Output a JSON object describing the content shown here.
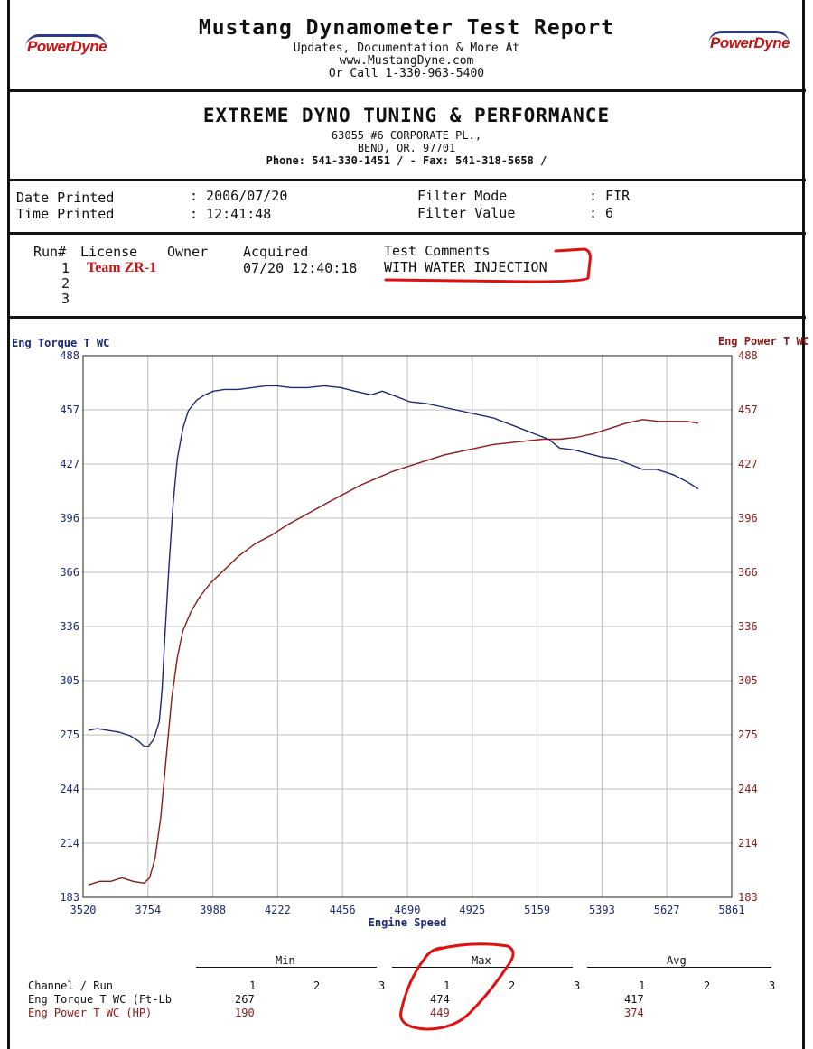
{
  "header": {
    "title": "Mustang Dynamometer Test Report",
    "line1": "Updates, Documentation & More At",
    "line2": "www.MustangDyne.com",
    "line3": "Or Call 1-330-963-5400",
    "logo_left": "PowerDyne",
    "logo_right": "PowerDyne"
  },
  "shop": {
    "name": "EXTREME DYNO TUNING & PERFORMANCE",
    "address1": "63055 #6 CORPORATE PL.,",
    "address2": "BEND, OR.  97701",
    "phone": "Phone: 541-330-1451 /  - Fax: 541-318-5658 /"
  },
  "info": {
    "date_label": "Date Printed",
    "date_value": ": 2006/07/20",
    "time_label": "Time Printed",
    "time_value": ": 12:41:48",
    "filter_mode_label": "Filter Mode",
    "filter_mode_value": ": FIR",
    "filter_value_label": "Filter Value",
    "filter_value_value": ": 6"
  },
  "runs": {
    "headers": [
      "Run#",
      "License",
      "Owner",
      "Acquired",
      "Test Comments"
    ],
    "rows": [
      {
        "run": "1",
        "license": "Team ZR-1",
        "acquired": "07/20 12:40:18",
        "comment": "WITH WATER INJECTION"
      },
      {
        "run": "2",
        "license": "",
        "acquired": "",
        "comment": ""
      },
      {
        "run": "3",
        "license": "",
        "acquired": "",
        "comment": ""
      }
    ]
  },
  "chart_data": {
    "type": "line",
    "xlabel": "Engine Speed",
    "ylabel_left": "Eng Torque T WC",
    "ylabel_right": "Eng Power T WC",
    "xlim": [
      3520,
      5861
    ],
    "ylim": [
      183,
      488
    ],
    "x_ticks": [
      "3520",
      "3754",
      "3988",
      "4222",
      "4456",
      "4690",
      "4925",
      "5159",
      "5393",
      "5627",
      "5861"
    ],
    "y_ticks": [
      "488",
      "457",
      "427",
      "396",
      "366",
      "336",
      "305",
      "275",
      "244",
      "214",
      "183"
    ],
    "grid": true,
    "colors": {
      "torque": "#1c2a78",
      "power": "#8b1a1a"
    },
    "series": [
      {
        "name": "Eng Torque T WC",
        "axis": "left",
        "x": [
          3540,
          3570,
          3610,
          3650,
          3690,
          3720,
          3740,
          3755,
          3775,
          3795,
          3805,
          3815,
          3830,
          3845,
          3860,
          3880,
          3900,
          3930,
          3960,
          3990,
          4030,
          4080,
          4130,
          4180,
          4220,
          4270,
          4330,
          4390,
          4450,
          4500,
          4560,
          4600,
          4650,
          4700,
          4760,
          4820,
          4880,
          4940,
          5000,
          5050,
          5100,
          5150,
          5200,
          5240,
          5290,
          5340,
          5390,
          5440,
          5490,
          5540,
          5590,
          5650,
          5700,
          5740
        ],
        "y": [
          277,
          278,
          277,
          276,
          274,
          271,
          268,
          268,
          272,
          282,
          300,
          330,
          370,
          405,
          430,
          447,
          457,
          463,
          466,
          468,
          469,
          469,
          470,
          471,
          471,
          470,
          470,
          471,
          470,
          468,
          466,
          468,
          465,
          462,
          461,
          459,
          457,
          455,
          453,
          450,
          447,
          444,
          441,
          436,
          435,
          433,
          431,
          430,
          427,
          424,
          424,
          421,
          417,
          413
        ]
      },
      {
        "name": "Eng Power T WC",
        "axis": "left",
        "x": [
          3540,
          3580,
          3620,
          3660,
          3700,
          3740,
          3760,
          3780,
          3800,
          3820,
          3840,
          3860,
          3880,
          3910,
          3940,
          3980,
          4020,
          4080,
          4140,
          4200,
          4260,
          4330,
          4400,
          4460,
          4520,
          4580,
          4640,
          4700,
          4760,
          4820,
          4880,
          4940,
          5000,
          5060,
          5120,
          5180,
          5240,
          5300,
          5360,
          5420,
          5480,
          5540,
          5600,
          5660,
          5700,
          5740
        ],
        "y": [
          190,
          192,
          192,
          194,
          192,
          191,
          194,
          205,
          228,
          262,
          295,
          318,
          333,
          344,
          352,
          360,
          366,
          375,
          382,
          387,
          393,
          399,
          405,
          410,
          415,
          419,
          423,
          426,
          429,
          432,
          434,
          436,
          438,
          439,
          440,
          441,
          441,
          442,
          444,
          447,
          450,
          452,
          451,
          451,
          451,
          450
        ]
      }
    ]
  },
  "stats": {
    "groups": [
      "Min",
      "Max",
      "Avg"
    ],
    "run_header": "Channel / Run",
    "run_numbers": [
      "1",
      "2",
      "3"
    ],
    "rows": [
      {
        "label": "Eng Torque T WC (Ft-Lb",
        "min": "267",
        "max": "474",
        "avg": "417"
      },
      {
        "label": "Eng Power T WC (HP)",
        "min": "190",
        "max": "449",
        "avg": "374"
      }
    ]
  }
}
